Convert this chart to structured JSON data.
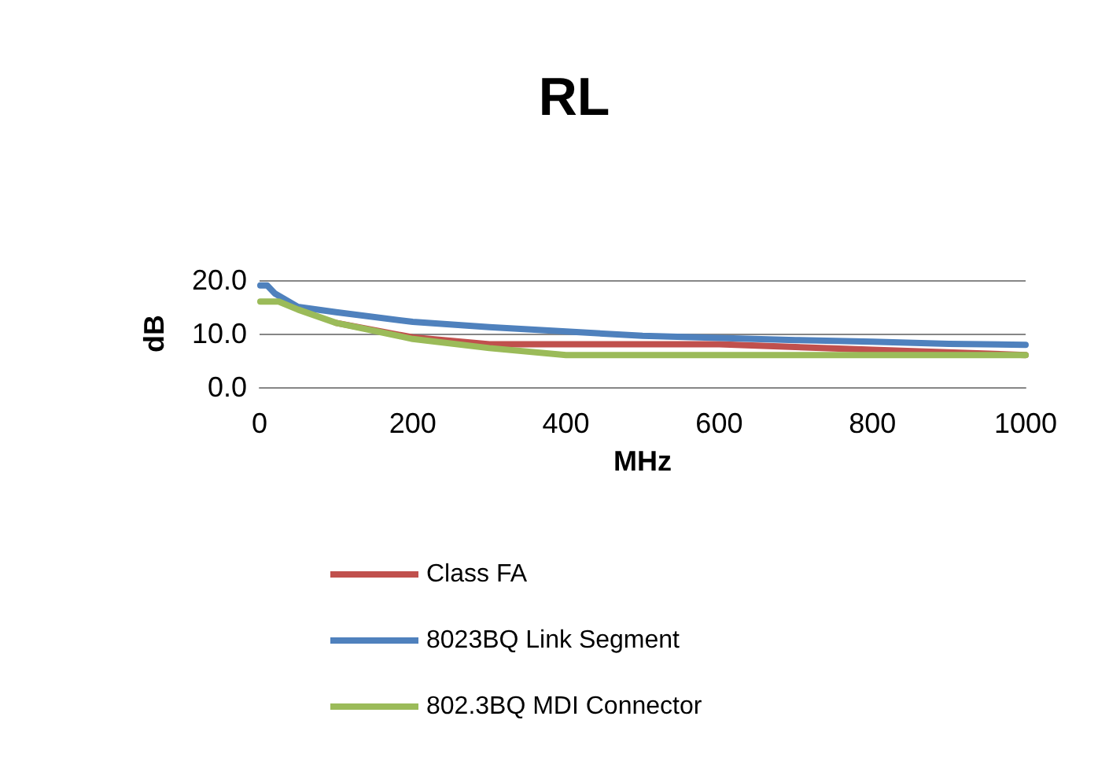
{
  "chart_data": {
    "type": "line",
    "title": "RL",
    "xlabel": "MHz",
    "ylabel": "dB",
    "xlim": [
      0,
      1000
    ],
    "xticks": [
      0,
      200,
      400,
      600,
      800,
      1000
    ],
    "ylim": [
      0,
      20
    ],
    "yticks": [
      {
        "value": 0,
        "label": "0.0"
      },
      {
        "value": 10,
        "label": "10.0"
      },
      {
        "value": 20,
        "label": "20.0"
      }
    ],
    "grid": "y",
    "legend": "bottom",
    "marker": "none",
    "line_style": "solid",
    "series": [
      {
        "name": "Class FA",
        "color": "#c0504d",
        "x": [
          100,
          200,
          300,
          400,
          600,
          800,
          1000
        ],
        "values": [
          12,
          9.3,
          8,
          8,
          8,
          7,
          6
        ]
      },
      {
        "name": "8023BQ Link Segment",
        "color": "#4f81bd",
        "x": [
          1,
          10,
          20,
          50,
          100,
          200,
          300,
          400,
          500,
          600,
          700,
          800,
          900,
          1000
        ],
        "values": [
          19,
          19,
          17.5,
          15,
          14,
          12.2,
          11.2,
          10.4,
          9.6,
          9.2,
          8.8,
          8.5,
          8.1,
          7.9
        ]
      },
      {
        "name": "802.3BQ MDI Connector",
        "color": "#9bbb59",
        "x": [
          1,
          25,
          50,
          100,
          200,
          300,
          400,
          1000
        ],
        "values": [
          16,
          16,
          14.5,
          12,
          9,
          7.3,
          6,
          6
        ]
      }
    ]
  }
}
